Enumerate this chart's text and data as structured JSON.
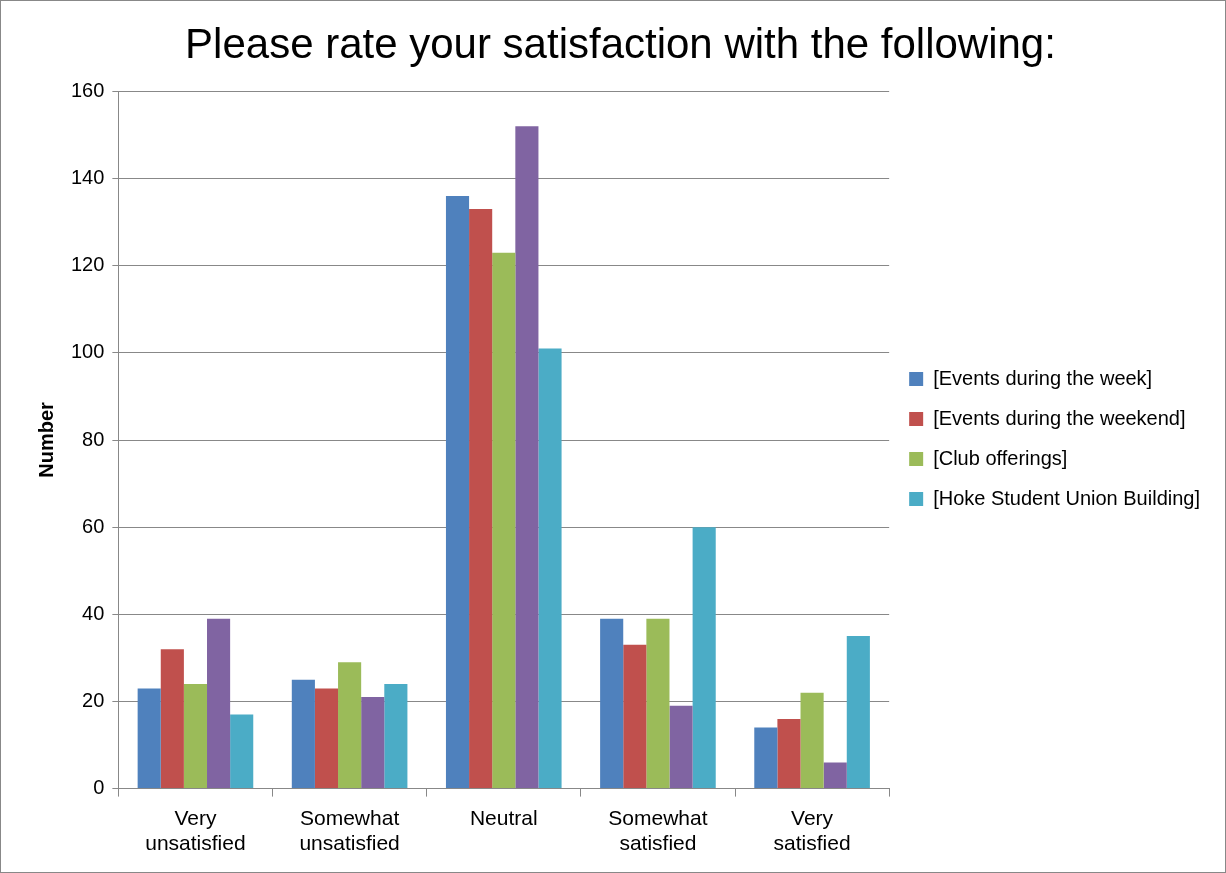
{
  "chart_data": {
    "type": "bar",
    "title": "Please rate your satisfaction with the following:",
    "ylabel": "Number",
    "categories": [
      "Very unsatisfied",
      "Somewhat unsatisfied",
      "Neutral",
      "Somewhat satisfied",
      "Very satisfied"
    ],
    "series": [
      {
        "name": "[Events during the week]",
        "color": "#4f81bd",
        "values": [
          23,
          25,
          136,
          39,
          14
        ]
      },
      {
        "name": "[Events during the weekend]",
        "color": "#c0504d",
        "values": [
          32,
          23,
          133,
          33,
          16
        ]
      },
      {
        "name": "[Club offerings]",
        "color": "#9bbb59",
        "values": [
          24,
          29,
          123,
          39,
          22
        ]
      },
      {
        "color": "#8064a2",
        "values": [
          39,
          21,
          152,
          19,
          6
        ]
      },
      {
        "name": "[Hoke Student Union Building]",
        "color": "#4bacc6",
        "values": [
          17,
          24,
          101,
          60,
          35
        ]
      }
    ],
    "ylim": [
      0,
      160
    ],
    "yticks": [
      0,
      20,
      40,
      60,
      80,
      100,
      120,
      140,
      160
    ],
    "grid": "y",
    "legend": "right"
  }
}
